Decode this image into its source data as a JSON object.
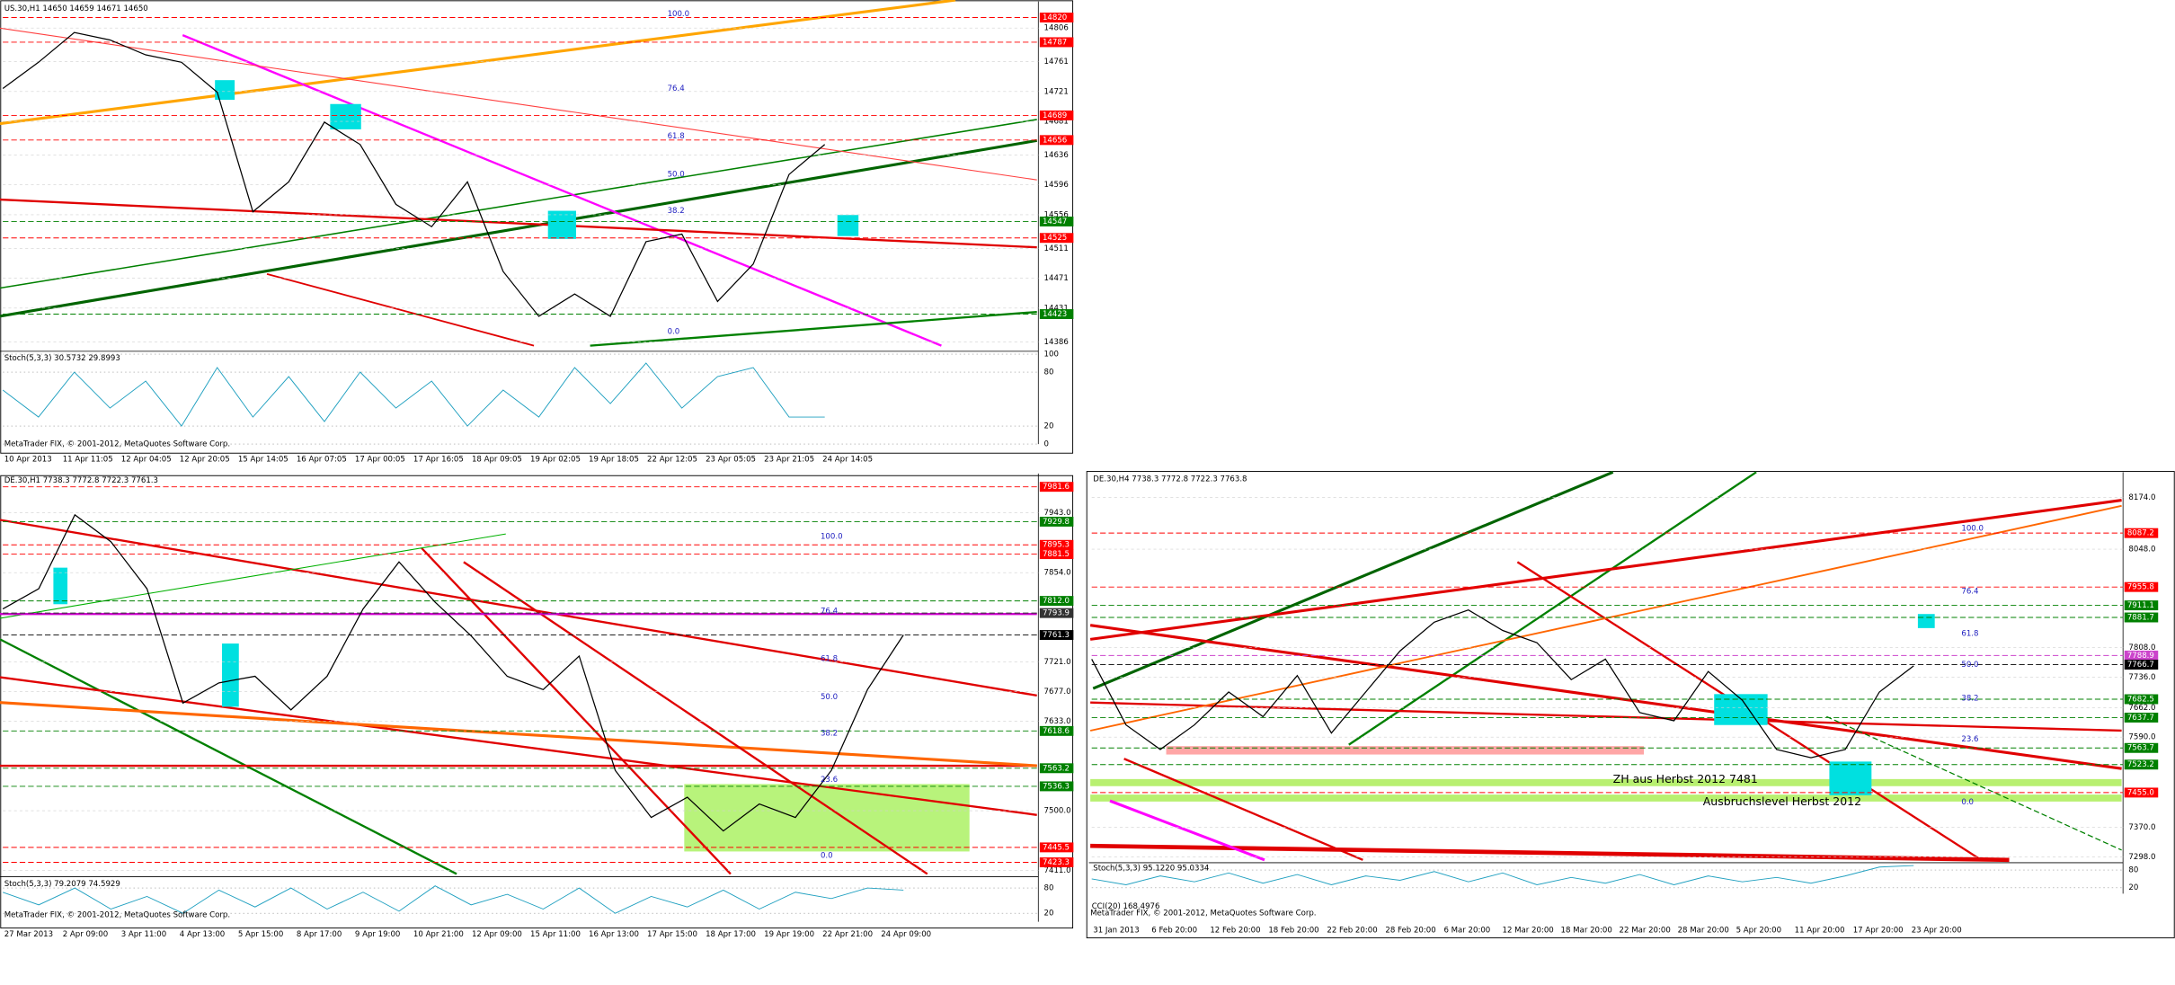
{
  "chart_data": [
    {
      "type": "line",
      "title": "US.30,H1  14650 14659 14671 14650",
      "values": [
        14725,
        14760,
        14800,
        14790,
        14770,
        14760,
        14720,
        14560,
        14600,
        14680,
        14650,
        14570,
        14540,
        14600,
        14480,
        14420,
        14450,
        14420,
        14520,
        14530,
        14440,
        14490,
        14610,
        14650
      ],
      "ylim": [
        14377,
        14834
      ],
      "yticks": [
        14806,
        14761,
        14721,
        14681,
        14636,
        14596,
        14556,
        14511,
        14471,
        14431,
        14386
      ],
      "levels": [
        {
          "value": 14820,
          "color": "#ff0000"
        },
        {
          "value": 14787,
          "color": "#ff0000"
        },
        {
          "value": 14689,
          "color": "#ff0000"
        },
        {
          "value": 14656,
          "color": "#ff0000"
        },
        {
          "value": 14547,
          "color": "#008000"
        },
        {
          "value": 14525,
          "color": "#ff0000"
        },
        {
          "value": 14423,
          "color": "#008000"
        }
      ],
      "fib_labels": [
        "100.0",
        "76.4",
        "61.8",
        "50.0",
        "38.2",
        "0.0"
      ],
      "stoch": {
        "label": "Stoch(5,3,3) 30.5732 29.8993",
        "ylim": [
          0,
          100
        ],
        "yticks": [
          100,
          80,
          20,
          0
        ],
        "values": [
          60,
          30,
          80,
          40,
          70,
          20,
          85,
          30,
          75,
          25,
          80,
          40,
          70,
          20,
          60,
          30,
          85,
          45,
          90,
          40,
          75,
          85,
          30,
          30
        ]
      },
      "time_labels": [
        "10 Apr 2013",
        "11 Apr 11:05",
        "12 Apr 04:05",
        "12 Apr 20:05",
        "15 Apr 14:05",
        "16 Apr 07:05",
        "17 Apr 00:05",
        "17 Apr 16:05",
        "18 Apr 09:05",
        "19 Apr 02:05",
        "19 Apr 18:05",
        "22 Apr 12:05",
        "23 Apr 05:05",
        "23 Apr 21:05",
        "24 Apr 14:05"
      ],
      "footer": "MetaTrader FIX, © 2001-2012, MetaQuotes Software Corp."
    },
    {
      "type": "line",
      "title": "DE.30,H1  7738.3 7772.8 7722.3 7761.3",
      "values": [
        7800,
        7830,
        7940,
        7900,
        7830,
        7660,
        7690,
        7700,
        7650,
        7700,
        7800,
        7870,
        7810,
        7760,
        7700,
        7680,
        7730,
        7560,
        7490,
        7520,
        7470,
        7510,
        7490,
        7560,
        7680,
        7761.3
      ],
      "ylim": [
        7406,
        7993
      ],
      "yticks": [
        {
          "value": 7943,
          "label": "7943.0"
        },
        {
          "value": 7854,
          "label": "7854.0"
        },
        {
          "value": 7721,
          "label": "7721.0"
        },
        {
          "value": 7677,
          "label": "7677.0"
        },
        {
          "value": 7633,
          "label": "7633.0"
        },
        {
          "value": 7500,
          "label": "7500.0"
        },
        {
          "value": 7411,
          "label": "7411.0"
        }
      ],
      "levels": [
        {
          "value": 7981.6,
          "color": "#ff0000"
        },
        {
          "value": 7929.8,
          "color": "#008000"
        },
        {
          "value": 7895.3,
          "color": "#ff0000"
        },
        {
          "value": 7881.5,
          "color": "#ff0000"
        },
        {
          "value": 7812,
          "label": "7812.0",
          "color": "#008000"
        },
        {
          "value": 7793.9,
          "color": "#333333"
        },
        {
          "value": 7761.3,
          "color": "#000000"
        },
        {
          "value": 7618.6,
          "color": "#008000"
        },
        {
          "value": 7563.2,
          "color": "#008000"
        },
        {
          "value": 7536.3,
          "color": "#008000"
        },
        {
          "value": 7445.5,
          "color": "#ff0000"
        },
        {
          "value": 7423.3,
          "color": "#ff0000"
        }
      ],
      "fib_labels": [
        "100.0",
        "76.4",
        "61.8",
        "50.0",
        "38.2",
        "23.6",
        "0.0"
      ],
      "stoch": {
        "label": "Stoch(5,3,3) 79.2079 74.5929",
        "ylim": [
          0,
          100
        ],
        "yticks": [
          80,
          20
        ],
        "values": [
          70,
          40,
          80,
          30,
          60,
          20,
          75,
          35,
          80,
          30,
          70,
          25,
          85,
          40,
          65,
          30,
          80,
          20,
          60,
          35,
          75,
          30,
          70,
          55,
          80,
          75
        ]
      },
      "time_labels": [
        "27 Mar 2013",
        "2 Apr 09:00",
        "3 Apr 11:00",
        "4 Apr 13:00",
        "5 Apr 15:00",
        "8 Apr 17:00",
        "9 Apr 19:00",
        "10 Apr 21:00",
        "12 Apr 09:00",
        "15 Apr 11:00",
        "16 Apr 13:00",
        "17 Apr 15:00",
        "18 Apr 17:00",
        "19 Apr 19:00",
        "22 Apr 21:00",
        "24 Apr 09:00"
      ],
      "footer": "MetaTrader FIX, © 2001-2012, MetaQuotes Software Corp."
    },
    {
      "type": "line",
      "title": "DE.30,H4  7738.3 7772.8 7722.3 7763.8",
      "values": [
        7780,
        7620,
        7560,
        7620,
        7700,
        7640,
        7740,
        7600,
        7700,
        7800,
        7870,
        7900,
        7850,
        7820,
        7730,
        7780,
        7650,
        7630,
        7750,
        7680,
        7560,
        7540,
        7560,
        7700,
        7763.8
      ],
      "ylim": [
        7291,
        8222
      ],
      "yticks": [
        {
          "value": 8174,
          "label": "8174.0"
        },
        {
          "value": 8048,
          "label": "8048.0"
        },
        {
          "value": 7808,
          "label": "7808.0"
        },
        {
          "value": 7736,
          "label": "7736.0"
        },
        {
          "value": 7662,
          "label": "7662.0"
        },
        {
          "value": 7590,
          "label": "7590.0"
        },
        {
          "value": 7370,
          "label": "7370.0"
        },
        {
          "value": 7298,
          "label": "7298.0"
        }
      ],
      "levels": [
        {
          "value": 8087.2,
          "color": "#ff0000"
        },
        {
          "value": 7955.8,
          "color": "#ff0000"
        },
        {
          "value": 7911.1,
          "color": "#008000"
        },
        {
          "value": 7881.7,
          "color": "#008000"
        },
        {
          "value": 7788.9,
          "color": "#cc44cc"
        },
        {
          "value": 7766.7,
          "color": "#000000"
        },
        {
          "value": 7682.5,
          "color": "#008000"
        },
        {
          "value": 7637.7,
          "color": "#008000"
        },
        {
          "value": 7563.7,
          "color": "#008000"
        },
        {
          "value": 7523.2,
          "color": "#008000"
        },
        {
          "value": 7455,
          "label": "7455.0",
          "color": "#ff0000"
        }
      ],
      "fib_labels": [
        "100.0",
        "76.4",
        "61.8",
        "50.0",
        "38.2",
        "23.6",
        "0.0"
      ],
      "annotations": [
        "ZH aus Herbst 2012 7481",
        "Ausbruchslevel Herbst 2012"
      ],
      "stoch": {
        "label": "Stoch(5,3,3) 95.1220 95.0334",
        "ylim": [
          0,
          100
        ],
        "yticks": [
          80,
          20
        ],
        "values": [
          50,
          30,
          60,
          40,
          70,
          35,
          65,
          30,
          60,
          45,
          75,
          40,
          70,
          30,
          55,
          35,
          65,
          30,
          60,
          40,
          55,
          35,
          60,
          90,
          95
        ]
      },
      "cci_label": "CCI(20) 168.4976",
      "time_labels": [
        "31 Jan 2013",
        "6 Feb 20:00",
        "12 Feb 20:00",
        "18 Feb 20:00",
        "22 Feb 20:00",
        "28 Feb 20:00",
        "6 Mar 20:00",
        "12 Mar 20:00",
        "18 Mar 20:00",
        "22 Mar 20:00",
        "28 Mar 20:00",
        "5 Apr 20:00",
        "11 Apr 20:00",
        "17 Apr 20:00",
        "23 Apr 20:00"
      ],
      "footer": "MetaTrader FIX, © 2001-2012, MetaQuotes Software Corp."
    }
  ]
}
